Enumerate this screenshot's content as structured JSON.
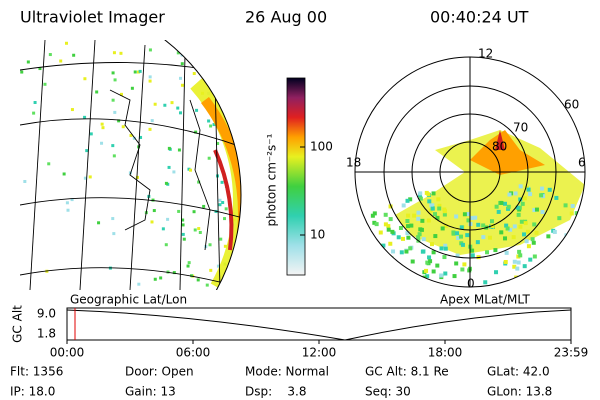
{
  "header": {
    "title": "Ultraviolet Imager",
    "date": "26 Aug 00",
    "time": "00:40:24 UT"
  },
  "colorbar": {
    "label": "photon cm⁻²s⁻¹",
    "ticks": [
      "100",
      "10"
    ]
  },
  "polar": {
    "mlt_labels": [
      "12",
      "18",
      "6",
      "0"
    ],
    "mlat_labels": [
      "60",
      "70",
      "80"
    ]
  },
  "panel_labels": [
    "Geographic Lat/Lon",
    "Apex MLat/MLT"
  ],
  "timeline": {
    "ylabel": "GC Alt",
    "yticks": [
      "9.0",
      "1.8"
    ],
    "xticks": [
      "00:00",
      "06:00",
      "12:00",
      "18:00",
      "23:59"
    ]
  },
  "status": [
    [
      "Flt: 1356",
      "Door: Open",
      "Mode: Normal",
      "GC Alt: 8.1 Re",
      "GLat: 42.0"
    ],
    [
      "IP: 18.0",
      "Gain: 13",
      "Dsp:    3.8",
      "Seq: 30",
      "GLon: 13.8"
    ]
  ]
}
